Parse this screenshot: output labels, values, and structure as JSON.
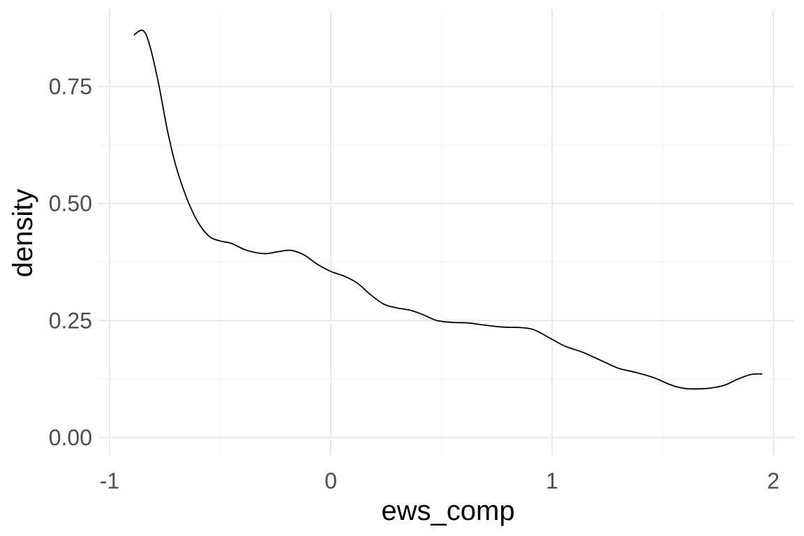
{
  "chart_data": {
    "type": "line",
    "title": "",
    "xlabel": "ews_comp",
    "ylabel": "density",
    "xlim": [
      -1.0,
      2.1
    ],
    "ylim": [
      -0.02,
      0.89
    ],
    "x_ticks": [
      -1,
      0,
      1,
      2
    ],
    "x_tick_labels": [
      "-1",
      "0",
      "1",
      "2"
    ],
    "y_ticks": [
      0.0,
      0.25,
      0.5,
      0.75
    ],
    "y_tick_labels": [
      "0.00",
      "0.25",
      "0.50",
      "0.75"
    ],
    "grid": true,
    "legend": "none",
    "series": [
      {
        "color": "#000000",
        "x": [
          -0.89,
          -0.85,
          -0.82,
          -0.78,
          -0.74,
          -0.7,
          -0.65,
          -0.6,
          -0.55,
          -0.5,
          -0.45,
          -0.38,
          -0.3,
          -0.24,
          -0.18,
          -0.12,
          -0.06,
          0.0,
          0.06,
          0.12,
          0.18,
          0.24,
          0.3,
          0.36,
          0.42,
          0.48,
          0.55,
          0.62,
          0.7,
          0.78,
          0.86,
          0.92,
          1.0,
          1.06,
          1.14,
          1.22,
          1.3,
          1.38,
          1.46,
          1.54,
          1.6,
          1.66,
          1.72,
          1.78,
          1.84,
          1.9,
          1.95
        ],
        "y": [
          0.86,
          0.87,
          0.84,
          0.76,
          0.66,
          0.58,
          0.51,
          0.46,
          0.43,
          0.42,
          0.415,
          0.4,
          0.393,
          0.397,
          0.4,
          0.39,
          0.37,
          0.355,
          0.345,
          0.33,
          0.305,
          0.285,
          0.277,
          0.272,
          0.262,
          0.25,
          0.246,
          0.245,
          0.24,
          0.236,
          0.235,
          0.23,
          0.21,
          0.195,
          0.182,
          0.165,
          0.148,
          0.139,
          0.128,
          0.112,
          0.105,
          0.104,
          0.106,
          0.112,
          0.125,
          0.135,
          0.136
        ]
      }
    ]
  }
}
